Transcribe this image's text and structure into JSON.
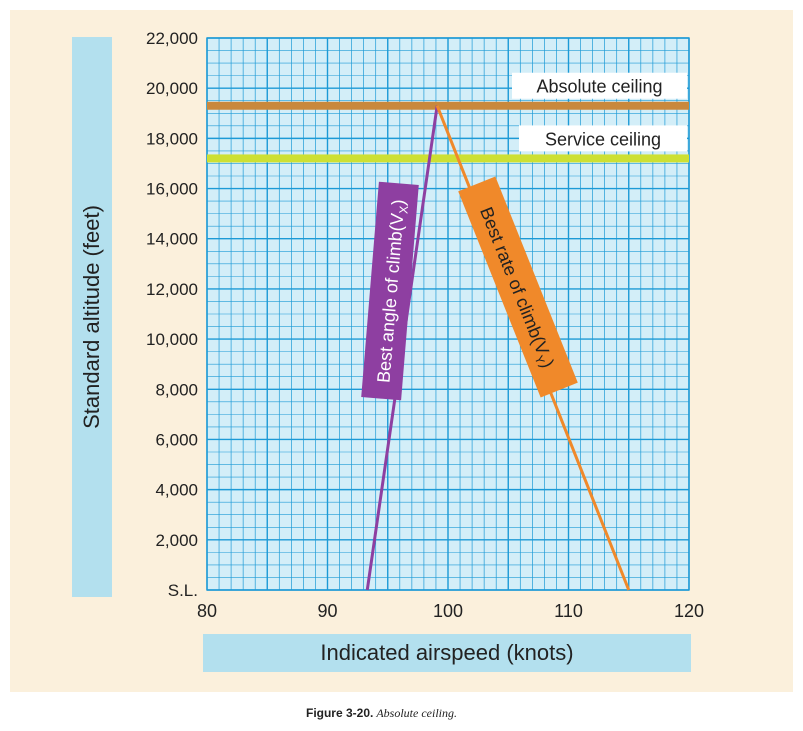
{
  "chart_data": {
    "type": "line",
    "xlabel": "Indicated airspeed (knots)",
    "ylabel": "Standard altitude (feet)",
    "xlim": [
      80,
      120
    ],
    "ylim": [
      0,
      22000
    ],
    "x_ticks": [
      "80",
      "90",
      "100",
      "110",
      "120"
    ],
    "y_ticks": [
      "S.L.",
      "2,000",
      "4,000",
      "6,000",
      "8,000",
      "10,000",
      "12,000",
      "14,000",
      "16,000",
      "18,000",
      "20,000",
      "22,000"
    ],
    "grid": true,
    "series": [
      {
        "name": "Best angle of climb(V",
        "subscript": "X",
        "color": "#8e3fa1",
        "x": [
          93.3,
          99.1
        ],
        "y": [
          0,
          19300
        ]
      },
      {
        "name": "Best rate of climb(V",
        "subscript": "Y",
        "color": "#f0892a",
        "x": [
          115.0,
          99.1
        ],
        "y": [
          0,
          19300
        ]
      }
    ],
    "reference_lines": [
      {
        "label": "Absolute ceiling",
        "y": 19300,
        "color": "#c9883c"
      },
      {
        "label": "Service ceiling",
        "y": 17200,
        "color": "#cde033"
      }
    ]
  },
  "caption": {
    "figure": "Figure 3-20.",
    "title": "Absolute ceiling."
  }
}
